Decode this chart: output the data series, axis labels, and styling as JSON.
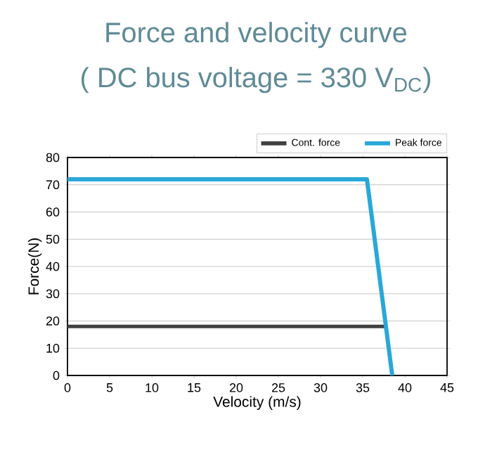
{
  "chart_data": {
    "type": "line",
    "title": "Force and velocity curve",
    "subtitle": "( DC bus voltage = 330 V$_{DC}$)",
    "xlabel": "Velocity (m/s)",
    "ylabel": "Force(N)",
    "xlim": [
      0,
      45
    ],
    "xticks": [
      0,
      5,
      10,
      15,
      20,
      25,
      30,
      35,
      40,
      45
    ],
    "ylim": [
      0,
      80
    ],
    "yticks": [
      0,
      10,
      20,
      30,
      40,
      50,
      60,
      70,
      80
    ],
    "grid": "y",
    "legend": "top right",
    "marker": "none",
    "line_style": "solid",
    "series": [
      {
        "name": "Cont. force",
        "color": "#404040",
        "x": [
          0,
          37.8
        ],
        "values": [
          18,
          18
        ]
      },
      {
        "name": "Peak force",
        "color": "#29a8d8",
        "x": [
          0,
          35.5,
          38.5
        ],
        "values": [
          72,
          72,
          0
        ]
      }
    ]
  }
}
